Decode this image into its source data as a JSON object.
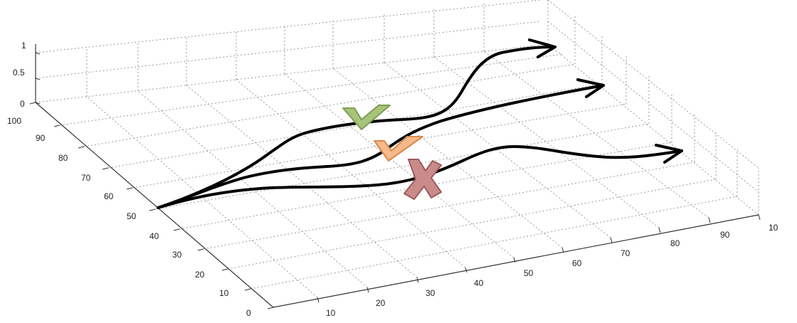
{
  "axes": {
    "x_ticks": [
      "10",
      "20",
      "30",
      "40",
      "50",
      "60",
      "70",
      "80",
      "90",
      "10"
    ],
    "y_ticks": [
      "0",
      "10",
      "20",
      "30",
      "40",
      "50",
      "60",
      "70",
      "80",
      "90",
      "100"
    ],
    "z_ticks": [
      "0",
      "0.5",
      "1"
    ],
    "grid": true
  },
  "trajectories": [
    {
      "outcome": "success",
      "marker": "check-mark",
      "color": "#a8c47a"
    },
    {
      "outcome": "partial",
      "marker": "check-mark",
      "color": "#f5b98a"
    },
    {
      "outcome": "failure",
      "marker": "cross-mark",
      "color": "#c98a8a"
    }
  ],
  "colors": {
    "success": "#a8c47a",
    "success_stroke": "#7d9c52",
    "partial": "#f5b98a",
    "partial_stroke": "#d88a4c",
    "failure": "#c98a8a",
    "failure_stroke": "#a05a5a",
    "path": "#000000",
    "grid": "#9a9a9a"
  }
}
